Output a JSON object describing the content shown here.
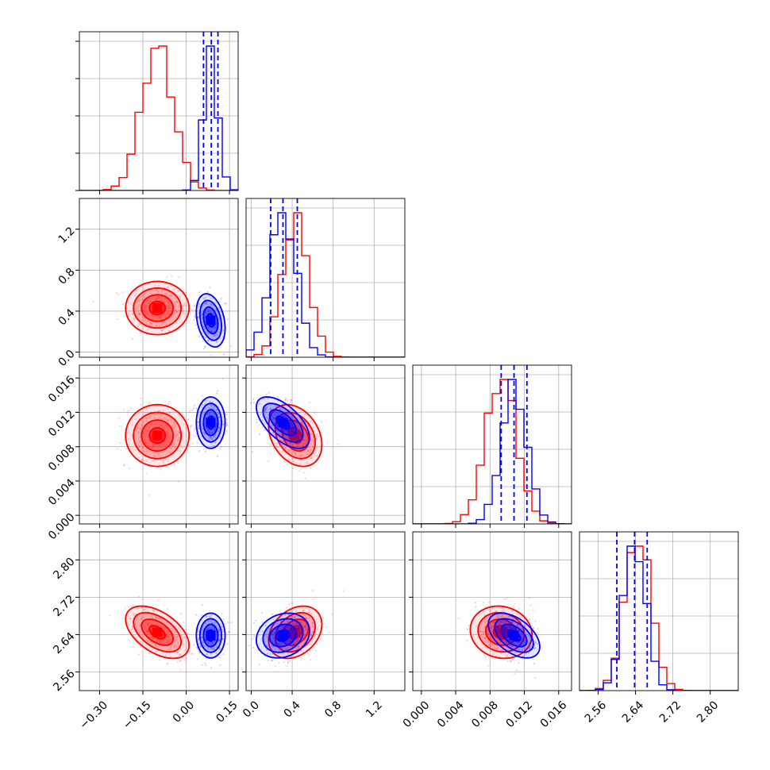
{
  "chart_data": {
    "type": "corner",
    "title": "",
    "parameters": [
      {
        "xlim": [
          -0.37,
          0.18
        ],
        "xticks": [
          "−0.30",
          "−0.15",
          "0.00",
          "0.15"
        ],
        "xtick_values": [
          -0.3,
          -0.15,
          0.0,
          0.15
        ]
      },
      {
        "xlim": [
          -0.05,
          1.5
        ],
        "xticks": [
          "0.0",
          "0.4",
          "0.8",
          "1.2"
        ],
        "xtick_values": [
          0.0,
          0.4,
          0.8,
          1.2
        ]
      },
      {
        "xlim": [
          -0.001,
          0.0175
        ],
        "xticks": [
          "0.000",
          "0.004",
          "0.008",
          "0.012",
          "0.016"
        ],
        "xtick_values": [
          0.0,
          0.004,
          0.008,
          0.012,
          0.016
        ]
      },
      {
        "xlim": [
          2.52,
          2.86
        ],
        "xticks": [
          "2.56",
          "2.64",
          "2.72",
          "2.80"
        ],
        "xtick_values": [
          2.56,
          2.64,
          2.72,
          2.8
        ]
      }
    ],
    "ytick_labels": {
      "1": {
        "labels": [
          "0.0",
          "0.4",
          "0.8",
          "1.2"
        ],
        "values": [
          0.0,
          0.4,
          0.8,
          1.2
        ]
      },
      "2": {
        "labels": [
          "0.000",
          "0.004",
          "0.008",
          "0.012",
          "0.016"
        ],
        "values": [
          0.0,
          0.004,
          0.008,
          0.012,
          0.016
        ]
      },
      "3": {
        "labels": [
          "2.56",
          "2.64",
          "2.72",
          "2.80"
        ],
        "values": [
          2.56,
          2.64,
          2.72,
          2.8
        ]
      }
    },
    "series": [
      {
        "color": "#ff0000",
        "means": [
          -0.1,
          0.43,
          0.0093,
          2.645
        ],
        "sds": [
          0.055,
          0.13,
          0.0018,
          0.028
        ],
        "corr": [
          [
            0,
            1,
            0.0
          ],
          [
            0,
            2,
            0.0
          ],
          [
            0,
            3,
            -0.5
          ],
          [
            1,
            2,
            -0.3
          ],
          [
            1,
            3,
            0.3
          ],
          [
            2,
            3,
            -0.1
          ]
        ]
      },
      {
        "color": "#0000ff",
        "means": [
          0.085,
          0.31,
          0.0108,
          2.638
        ],
        "sds": [
          0.025,
          0.13,
          0.0015,
          0.024
        ],
        "corr": [
          [
            0,
            1,
            -0.3
          ],
          [
            0,
            2,
            0.0
          ],
          [
            0,
            3,
            0.0
          ],
          [
            1,
            2,
            -0.6
          ],
          [
            1,
            3,
            0.2
          ],
          [
            2,
            3,
            -0.5
          ]
        ]
      }
    ],
    "quantile_lines_blue": [
      [
        0.06,
        0.087,
        0.11
      ],
      [
        0.19,
        0.31,
        0.45
      ],
      [
        0.0093,
        0.0108,
        0.0123
      ],
      [
        2.6,
        2.638,
        2.665
      ]
    ],
    "grid": true,
    "legend": "none"
  }
}
